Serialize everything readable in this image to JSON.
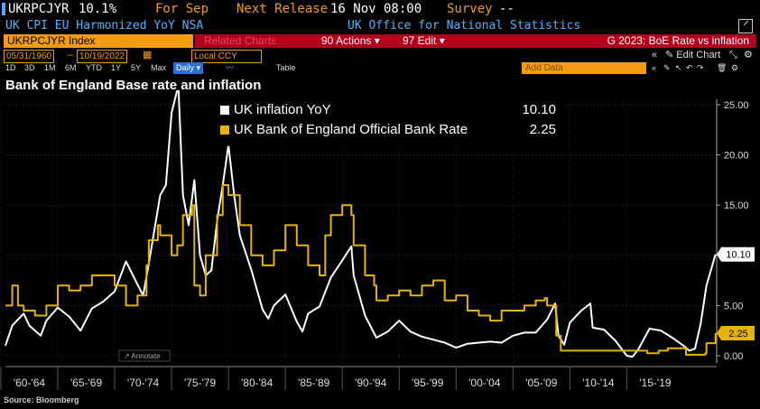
{
  "header": {
    "ticker": "UKRPCJYR",
    "value": "10.1%",
    "period_label": "For Sep",
    "next_release_label": "Next Release",
    "next_release_value": "16 Nov 08:00",
    "survey_label": "Survey",
    "survey_value": "--"
  },
  "subheader": {
    "description": "UK CPI EU Harmonized YoY NSA",
    "source": "UK Office for National Statistics"
  },
  "toolbar": {
    "security": "UKRPCJYR Index",
    "ghost_label": "Related Charts",
    "actions_label": "90 Actions",
    "edit_label": "97 Edit",
    "chart_name": "G 2023: BoE Rate vs inflation"
  },
  "range": {
    "start_date": "05/31/1960",
    "end_date": "10/19/2022",
    "currency": "Local CCY",
    "edit_chart": "Edit Chart"
  },
  "periods": [
    "1D",
    "3D",
    "1M",
    "6M",
    "YTD",
    "1Y",
    "5Y",
    "Max"
  ],
  "frequency": "Daily",
  "table_label": "Table",
  "add_data_placeholder": "Add Data",
  "annotate_label": "Annotate",
  "source_note": "Source: Bloomberg",
  "colors": {
    "inflation": "#ffffff",
    "rate": "#e6b400",
    "accent": "#f39c12",
    "bar": "#b3001b"
  },
  "chart_data": {
    "type": "line",
    "title": "Bank of England Base rate and inflation",
    "ylim": [
      0,
      25
    ],
    "yticks": [
      "25.00",
      "20.00",
      "15.00",
      "10.00",
      "5.00",
      "0.00"
    ],
    "xtick_labels": [
      "'60-'64",
      "'65-'69",
      "'70-'74",
      "'75-'79",
      "'80-'84",
      "'85-'89",
      "'90-'94",
      "'95-'99",
      "'00-'04",
      "'05-'09",
      "'10-'14",
      "'15-'19"
    ],
    "legend_position": "top",
    "series": [
      {
        "name": "UK inflation YoY",
        "last_value": "10.10",
        "x": [
          1960.4,
          1961,
          1962,
          1962.5,
          1963.5,
          1964,
          1965,
          1966,
          1967,
          1968,
          1969,
          1970,
          1971,
          1972,
          1972.5,
          1973,
          1974,
          1974.5,
          1975,
          1975.6,
          1976,
          1976.5,
          1977,
          1977.5,
          1978,
          1978.5,
          1979,
          1979.5,
          1980,
          1980.5,
          1981,
          1982,
          1983,
          1983.5,
          1984,
          1985,
          1986,
          1986.5,
          1987,
          1988,
          1989,
          1990,
          1990.8,
          1991,
          1992,
          1993,
          1994,
          1995,
          1996,
          1997,
          1998,
          1999,
          2000,
          2001,
          2002,
          2003,
          2004,
          2005,
          2006,
          2007,
          2008,
          2008.7,
          2009,
          2009.5,
          2010,
          2011,
          2011.8,
          2012,
          2013,
          2014,
          2015,
          2015.5,
          2016,
          2017,
          2018,
          2019,
          2020,
          2020.5,
          2021,
          2021.5,
          2022,
          2022.8
        ],
        "y": [
          1.0,
          3.0,
          4.2,
          3.0,
          2.0,
          3.5,
          4.8,
          3.9,
          2.5,
          4.7,
          5.4,
          6.4,
          9.4,
          7.1,
          6.0,
          9.2,
          16.0,
          17.0,
          24.2,
          26.9,
          16.0,
          13.0,
          17.5,
          10.0,
          8.0,
          8.5,
          13.4,
          17.0,
          21.0,
          16.0,
          12.0,
          8.6,
          4.6,
          3.7,
          5.0,
          6.1,
          3.4,
          2.4,
          4.2,
          4.9,
          7.8,
          9.5,
          10.9,
          8.0,
          4.0,
          1.8,
          2.4,
          3.5,
          2.4,
          1.9,
          1.6,
          1.3,
          0.8,
          1.2,
          1.3,
          1.4,
          1.3,
          2.0,
          2.3,
          2.3,
          3.6,
          5.2,
          2.0,
          1.1,
          3.3,
          4.5,
          5.2,
          2.8,
          2.6,
          1.5,
          0.0,
          -0.1,
          0.6,
          2.7,
          2.5,
          1.8,
          1.0,
          0.5,
          0.7,
          3.2,
          7.0,
          10.1
        ]
      },
      {
        "name": "UK Bank of England Official Bank Rate",
        "last_value": "2.25",
        "x": [
          1960.4,
          1961,
          1961.5,
          1962,
          1963,
          1964,
          1965,
          1966,
          1967,
          1968,
          1969,
          1970,
          1971,
          1972,
          1972.8,
          1973,
          1973.8,
          1974,
          1975,
          1975.5,
          1976,
          1976.8,
          1977,
          1977.5,
          1978,
          1979,
          1979.5,
          1980,
          1981,
          1982,
          1983,
          1984,
          1985,
          1986,
          1987,
          1988,
          1988.5,
          1989,
          1990,
          1990.8,
          1991,
          1992,
          1992.8,
          1993,
          1994,
          1995,
          1996,
          1997,
          1998,
          1999,
          2000,
          2001,
          2002,
          2003,
          2004,
          2005,
          2006,
          2007,
          2007.8,
          2008,
          2008.8,
          2009.2,
          2015,
          2016,
          2016.8,
          2017.8,
          2018.6,
          2020.2,
          2021.9,
          2022,
          2022.8
        ],
        "y": [
          5.0,
          7.0,
          5.0,
          4.5,
          4.0,
          5.0,
          7.0,
          6.5,
          7.0,
          8.0,
          8.0,
          7.0,
          5.0,
          6.0,
          9.0,
          11.5,
          13.0,
          12.0,
          10.0,
          11.0,
          14.0,
          15.0,
          7.0,
          6.0,
          10.0,
          14.0,
          17.0,
          16.0,
          13.0,
          10.0,
          9.0,
          10.5,
          13.0,
          11.0,
          9.0,
          8.0,
          12.0,
          14.0,
          15.0,
          14.0,
          11.0,
          8.0,
          7.0,
          5.5,
          6.0,
          6.5,
          6.0,
          7.0,
          7.5,
          5.5,
          6.0,
          4.5,
          4.0,
          3.5,
          4.5,
          4.5,
          5.0,
          5.5,
          5.75,
          5.0,
          2.0,
          0.5,
          0.5,
          0.5,
          0.25,
          0.5,
          0.75,
          0.1,
          0.25,
          1.25,
          2.25
        ]
      }
    ]
  }
}
